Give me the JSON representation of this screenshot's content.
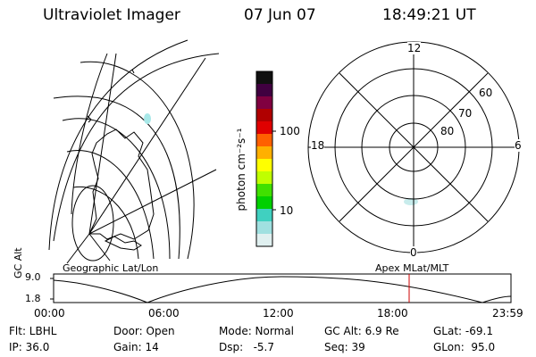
{
  "header": {
    "instrument": "Ultraviolet Imager",
    "date": "07 Jun 07",
    "time": "18:49:21 UT"
  },
  "geographic_panel": {
    "label": "Geographic Lat/Lon"
  },
  "colorbar": {
    "unit_label": "photon cm⁻²s⁻¹",
    "ticks": [
      "100",
      "10"
    ],
    "colors": [
      "#101010",
      "#400040",
      "#800040",
      "#b00000",
      "#e00000",
      "#ff6000",
      "#ffb000",
      "#ffff00",
      "#c0ff00",
      "#40e000",
      "#00d000",
      "#40d0c0",
      "#a0e0e0",
      "#e0f0f0"
    ]
  },
  "polar_panel": {
    "label": "Apex MLat/MLT",
    "mlt_labels": {
      "top": "12",
      "bottom": "0",
      "left": "18",
      "right": "6"
    },
    "lat_labels": [
      "60",
      "70",
      "80"
    ]
  },
  "timeline": {
    "axis_label": "GC Alt",
    "y_ticks": [
      "9.0",
      "1.8"
    ],
    "x_ticks": [
      "00:00",
      "06:00",
      "12:00",
      "18:00",
      "23:59"
    ],
    "current_marker_color": "#cc0000"
  },
  "status": {
    "flt": "Flt: LBHL",
    "ip": "IP: 36.0",
    "door": "Door: Open",
    "gain": "Gain: 14",
    "mode": "Mode: Normal",
    "dsp": "Dsp:   -5.7",
    "gcalt": "GC Alt: 6.9 Re",
    "seq": "Seq: 39",
    "glat": "GLat: -69.1",
    "glon": "GLon:  95.0"
  }
}
